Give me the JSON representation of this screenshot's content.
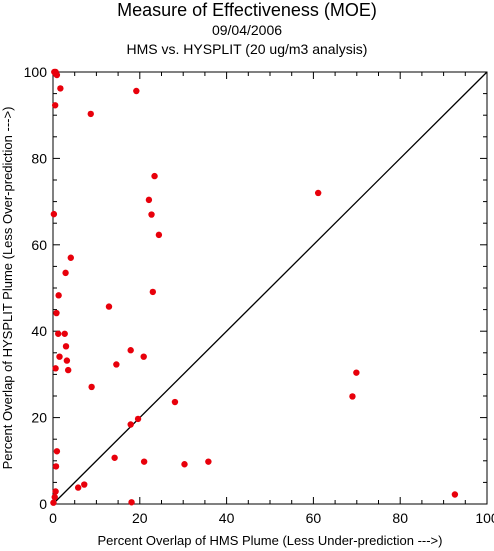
{
  "chart_data": {
    "type": "scatter",
    "title": "Measure of Effectiveness (MOE)",
    "subtitle_date": "09/04/2006",
    "subtitle_analysis": "HMS vs. HYSPLIT  (20 ug/m3 analysis)",
    "xlabel": "Percent Overlap of HMS Plume (Less Under-prediction --->)",
    "ylabel": "Percent Overlap of HYSPLIT Plume (Less Over-prediction --->)",
    "xlim": [
      0,
      100
    ],
    "ylim": [
      0,
      100
    ],
    "xticks": [
      0,
      20,
      40,
      60,
      80,
      100
    ],
    "yticks": [
      0,
      20,
      40,
      60,
      80,
      100
    ],
    "grid": false,
    "reference_line": "diagonal y = x",
    "point_color": "#e8000b",
    "points": [
      [
        0.3,
        100
      ],
      [
        0.5,
        99.8
      ],
      [
        0.7,
        99.5
      ],
      [
        0.9,
        99.3
      ],
      [
        0.6,
        100
      ],
      [
        1.7,
        96.2
      ],
      [
        0.5,
        92.3
      ],
      [
        0.2,
        67.1
      ],
      [
        8.7,
        90.3
      ],
      [
        19.2,
        95.6
      ],
      [
        23.4,
        75.9
      ],
      [
        22.1,
        70.4
      ],
      [
        22.7,
        67.0
      ],
      [
        24.4,
        62.3
      ],
      [
        4.1,
        57.0
      ],
      [
        2.9,
        53.5
      ],
      [
        23.0,
        49.1
      ],
      [
        1.3,
        48.3
      ],
      [
        0.8,
        44.2
      ],
      [
        12.9,
        45.7
      ],
      [
        1.2,
        39.4
      ],
      [
        2.7,
        39.4
      ],
      [
        3.0,
        36.5
      ],
      [
        17.9,
        35.6
      ],
      [
        20.9,
        34.1
      ],
      [
        1.5,
        34.1
      ],
      [
        3.2,
        33.2
      ],
      [
        14.6,
        32.3
      ],
      [
        3.5,
        31.0
      ],
      [
        0.6,
        31.4
      ],
      [
        8.9,
        27.1
      ],
      [
        28.1,
        23.6
      ],
      [
        19.6,
        19.7
      ],
      [
        17.9,
        18.4
      ],
      [
        0.9,
        12.2
      ],
      [
        14.2,
        10.7
      ],
      [
        21.0,
        9.8
      ],
      [
        30.3,
        9.2
      ],
      [
        35.8,
        9.8
      ],
      [
        0.7,
        8.7
      ],
      [
        7.2,
        4.5
      ],
      [
        5.8,
        3.8
      ],
      [
        0.6,
        2.9
      ],
      [
        0.4,
        1.6
      ],
      [
        0.1,
        0.3
      ],
      [
        18.1,
        0.4
      ],
      [
        61.1,
        72.0
      ],
      [
        69.0,
        24.9
      ],
      [
        69.9,
        30.4
      ],
      [
        92.6,
        2.2
      ]
    ]
  }
}
